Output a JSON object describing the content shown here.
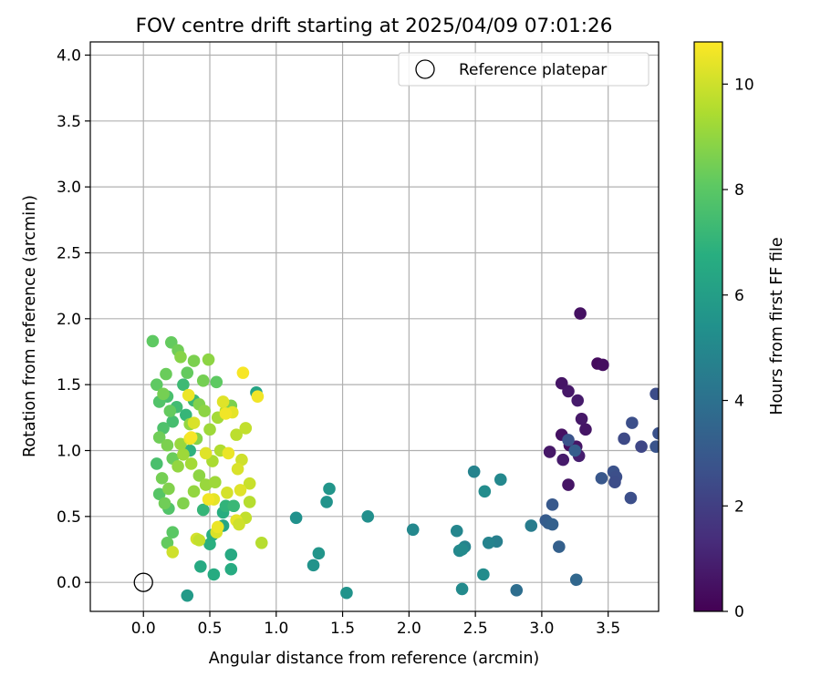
{
  "chart_data": {
    "type": "scatter",
    "title": "FOV centre drift starting at 2025/04/09 07:01:26",
    "xlabel": "Angular distance from reference (arcmin)",
    "ylabel": "Rotation from reference (arcmin)",
    "xlim": [
      -0.4,
      3.88
    ],
    "ylim": [
      -0.22,
      4.1
    ],
    "xticks": [
      0.0,
      0.5,
      1.0,
      1.5,
      2.0,
      2.5,
      3.0,
      3.5
    ],
    "yticks": [
      0.0,
      0.5,
      1.0,
      1.5,
      2.0,
      2.5,
      3.0,
      3.5,
      4.0
    ],
    "grid": true,
    "legend": {
      "position": "top-right",
      "entries": [
        "Reference platepar"
      ]
    },
    "reference_point": {
      "x": 0.0,
      "y": 0.0,
      "label": "Reference platepar"
    },
    "colorbar": {
      "label": "Hours from first FF file",
      "range": [
        0,
        10.8
      ],
      "ticks": [
        0,
        2,
        4,
        6,
        8,
        10
      ],
      "colormap": "viridis"
    },
    "points": [
      {
        "x": 3.29,
        "y": 2.04,
        "c": 0.5
      },
      {
        "x": 3.42,
        "y": 1.66,
        "c": 0.3
      },
      {
        "x": 3.46,
        "y": 1.65,
        "c": 0.4
      },
      {
        "x": 3.15,
        "y": 1.51,
        "c": 0.6
      },
      {
        "x": 3.2,
        "y": 1.45,
        "c": 0.7
      },
      {
        "x": 3.27,
        "y": 1.38,
        "c": 0.8
      },
      {
        "x": 3.3,
        "y": 1.24,
        "c": 0.7
      },
      {
        "x": 3.33,
        "y": 1.16,
        "c": 0.6
      },
      {
        "x": 3.15,
        "y": 1.12,
        "c": 0.5
      },
      {
        "x": 3.21,
        "y": 1.04,
        "c": 0.4
      },
      {
        "x": 3.26,
        "y": 1.03,
        "c": 0.6
      },
      {
        "x": 3.06,
        "y": 0.99,
        "c": 0.7
      },
      {
        "x": 3.28,
        "y": 0.96,
        "c": 0.9
      },
      {
        "x": 3.16,
        "y": 0.93,
        "c": 0.8
      },
      {
        "x": 3.2,
        "y": 0.74,
        "c": 0.6
      },
      {
        "x": 3.86,
        "y": 1.43,
        "c": 2.5
      },
      {
        "x": 3.68,
        "y": 1.21,
        "c": 2.6
      },
      {
        "x": 3.88,
        "y": 1.13,
        "c": 2.7
      },
      {
        "x": 3.62,
        "y": 1.09,
        "c": 2.4
      },
      {
        "x": 3.75,
        "y": 1.03,
        "c": 2.3
      },
      {
        "x": 3.86,
        "y": 1.03,
        "c": 2.8
      },
      {
        "x": 3.2,
        "y": 1.08,
        "c": 2.8
      },
      {
        "x": 3.25,
        "y": 1.0,
        "c": 3.2
      },
      {
        "x": 3.54,
        "y": 0.84,
        "c": 2.7
      },
      {
        "x": 3.45,
        "y": 0.79,
        "c": 2.9
      },
      {
        "x": 3.56,
        "y": 0.8,
        "c": 2.6
      },
      {
        "x": 3.55,
        "y": 0.76,
        "c": 2.5
      },
      {
        "x": 3.67,
        "y": 0.64,
        "c": 2.6
      },
      {
        "x": 3.08,
        "y": 0.59,
        "c": 3.0
      },
      {
        "x": 3.03,
        "y": 0.47,
        "c": 3.1
      },
      {
        "x": 3.05,
        "y": 0.45,
        "c": 3.2
      },
      {
        "x": 3.08,
        "y": 0.44,
        "c": 3.3
      },
      {
        "x": 3.13,
        "y": 0.27,
        "c": 3.3
      },
      {
        "x": 3.26,
        "y": 0.02,
        "c": 3.6
      },
      {
        "x": 2.81,
        "y": -0.06,
        "c": 3.9
      },
      {
        "x": 2.92,
        "y": 0.43,
        "c": 4.5
      },
      {
        "x": 2.66,
        "y": 0.31,
        "c": 4.6
      },
      {
        "x": 2.6,
        "y": 0.3,
        "c": 4.8
      },
      {
        "x": 2.69,
        "y": 0.78,
        "c": 5.0
      },
      {
        "x": 2.49,
        "y": 0.84,
        "c": 4.8
      },
      {
        "x": 2.57,
        "y": 0.69,
        "c": 5.2
      },
      {
        "x": 2.36,
        "y": 0.39,
        "c": 4.9
      },
      {
        "x": 2.42,
        "y": 0.27,
        "c": 4.8
      },
      {
        "x": 2.38,
        "y": 0.24,
        "c": 5.0
      },
      {
        "x": 2.4,
        "y": 0.25,
        "c": 5.1
      },
      {
        "x": 2.56,
        "y": 0.06,
        "c": 5.2
      },
      {
        "x": 2.4,
        "y": -0.05,
        "c": 5.1
      },
      {
        "x": 2.03,
        "y": 0.4,
        "c": 5.0
      },
      {
        "x": 1.69,
        "y": 0.5,
        "c": 5.3
      },
      {
        "x": 1.4,
        "y": 0.71,
        "c": 5.6
      },
      {
        "x": 1.38,
        "y": 0.61,
        "c": 5.5
      },
      {
        "x": 1.15,
        "y": 0.49,
        "c": 5.4
      },
      {
        "x": 1.32,
        "y": 0.22,
        "c": 5.6
      },
      {
        "x": 1.28,
        "y": 0.13,
        "c": 5.5
      },
      {
        "x": 1.53,
        "y": -0.08,
        "c": 5.5
      },
      {
        "x": 0.33,
        "y": -0.1,
        "c": 5.8
      },
      {
        "x": 0.85,
        "y": 1.44,
        "c": 6.3
      },
      {
        "x": 0.43,
        "y": 0.12,
        "c": 6.5
      },
      {
        "x": 0.53,
        "y": 0.06,
        "c": 6.6
      },
      {
        "x": 0.66,
        "y": 0.21,
        "c": 6.5
      },
      {
        "x": 0.66,
        "y": 0.1,
        "c": 6.6
      },
      {
        "x": 0.5,
        "y": 0.29,
        "c": 6.8
      },
      {
        "x": 0.52,
        "y": 0.36,
        "c": 6.7
      },
      {
        "x": 0.6,
        "y": 0.43,
        "c": 6.4
      },
      {
        "x": 0.6,
        "y": 0.53,
        "c": 6.7
      },
      {
        "x": 0.62,
        "y": 0.58,
        "c": 7.0
      },
      {
        "x": 0.68,
        "y": 0.58,
        "c": 7.2
      },
      {
        "x": 0.45,
        "y": 0.55,
        "c": 7.1
      },
      {
        "x": 0.35,
        "y": 1.0,
        "c": 6.9
      },
      {
        "x": 0.32,
        "y": 1.27,
        "c": 7.1
      },
      {
        "x": 0.38,
        "y": 1.38,
        "c": 7.2
      },
      {
        "x": 0.3,
        "y": 1.5,
        "c": 7.3
      },
      {
        "x": 0.25,
        "y": 1.33,
        "c": 7.4
      },
      {
        "x": 0.22,
        "y": 1.22,
        "c": 7.5
      },
      {
        "x": 0.18,
        "y": 1.41,
        "c": 7.6
      },
      {
        "x": 0.15,
        "y": 1.17,
        "c": 7.7
      },
      {
        "x": 0.12,
        "y": 1.37,
        "c": 7.8
      },
      {
        "x": 0.1,
        "y": 0.9,
        "c": 7.6
      },
      {
        "x": 0.12,
        "y": 0.67,
        "c": 7.9
      },
      {
        "x": 0.19,
        "y": 0.56,
        "c": 7.8
      },
      {
        "x": 0.22,
        "y": 0.38,
        "c": 8.0
      },
      {
        "x": 0.18,
        "y": 0.3,
        "c": 8.2
      },
      {
        "x": 0.07,
        "y": 1.83,
        "c": 8.1
      },
      {
        "x": 0.21,
        "y": 1.82,
        "c": 8.2
      },
      {
        "x": 0.26,
        "y": 1.76,
        "c": 8.4
      },
      {
        "x": 0.17,
        "y": 1.58,
        "c": 8.3
      },
      {
        "x": 0.1,
        "y": 1.5,
        "c": 8.1
      },
      {
        "x": 0.15,
        "y": 1.43,
        "c": 8.5
      },
      {
        "x": 0.2,
        "y": 1.3,
        "c": 8.2
      },
      {
        "x": 0.12,
        "y": 1.1,
        "c": 8.4
      },
      {
        "x": 0.18,
        "y": 1.04,
        "c": 8.6
      },
      {
        "x": 0.22,
        "y": 0.94,
        "c": 8.3
      },
      {
        "x": 0.14,
        "y": 0.79,
        "c": 8.5
      },
      {
        "x": 0.19,
        "y": 0.71,
        "c": 8.7
      },
      {
        "x": 0.16,
        "y": 0.6,
        "c": 8.4
      },
      {
        "x": 0.33,
        "y": 1.59,
        "c": 8.2
      },
      {
        "x": 0.28,
        "y": 1.71,
        "c": 8.8
      },
      {
        "x": 0.38,
        "y": 1.68,
        "c": 8.6
      },
      {
        "x": 0.45,
        "y": 1.53,
        "c": 8.5
      },
      {
        "x": 0.49,
        "y": 1.69,
        "c": 8.9
      },
      {
        "x": 0.55,
        "y": 1.52,
        "c": 8.1
      },
      {
        "x": 0.42,
        "y": 1.35,
        "c": 8.7
      },
      {
        "x": 0.46,
        "y": 1.3,
        "c": 8.9
      },
      {
        "x": 0.35,
        "y": 1.2,
        "c": 9.0
      },
      {
        "x": 0.4,
        "y": 1.09,
        "c": 8.8
      },
      {
        "x": 0.28,
        "y": 1.05,
        "c": 9.1
      },
      {
        "x": 0.3,
        "y": 0.97,
        "c": 9.2
      },
      {
        "x": 0.26,
        "y": 0.88,
        "c": 9.0
      },
      {
        "x": 0.36,
        "y": 0.9,
        "c": 9.3
      },
      {
        "x": 0.42,
        "y": 0.81,
        "c": 8.9
      },
      {
        "x": 0.47,
        "y": 0.74,
        "c": 9.1
      },
      {
        "x": 0.3,
        "y": 0.6,
        "c": 8.7
      },
      {
        "x": 0.38,
        "y": 0.69,
        "c": 9.0
      },
      {
        "x": 0.54,
        "y": 0.76,
        "c": 9.2
      },
      {
        "x": 0.52,
        "y": 0.92,
        "c": 9.4
      },
      {
        "x": 0.58,
        "y": 1.0,
        "c": 9.5
      },
      {
        "x": 0.5,
        "y": 1.16,
        "c": 9.2
      },
      {
        "x": 0.56,
        "y": 1.25,
        "c": 9.3
      },
      {
        "x": 0.62,
        "y": 1.3,
        "c": 9.6
      },
      {
        "x": 0.66,
        "y": 1.34,
        "c": 8.6
      },
      {
        "x": 0.7,
        "y": 1.12,
        "c": 9.7
      },
      {
        "x": 0.77,
        "y": 1.17,
        "c": 9.8
      },
      {
        "x": 0.74,
        "y": 0.93,
        "c": 10.0
      },
      {
        "x": 0.71,
        "y": 0.86,
        "c": 10.2
      },
      {
        "x": 0.8,
        "y": 0.75,
        "c": 9.9
      },
      {
        "x": 0.73,
        "y": 0.7,
        "c": 10.3
      },
      {
        "x": 0.63,
        "y": 0.68,
        "c": 10.1
      },
      {
        "x": 0.53,
        "y": 0.63,
        "c": 10.4
      },
      {
        "x": 0.49,
        "y": 0.63,
        "c": 10.6
      },
      {
        "x": 0.8,
        "y": 0.61,
        "c": 9.6
      },
      {
        "x": 0.77,
        "y": 0.49,
        "c": 9.8
      },
      {
        "x": 0.7,
        "y": 0.47,
        "c": 10.4
      },
      {
        "x": 0.72,
        "y": 0.44,
        "c": 10.0
      },
      {
        "x": 0.55,
        "y": 0.38,
        "c": 10.2
      },
      {
        "x": 0.56,
        "y": 0.42,
        "c": 10.5
      },
      {
        "x": 0.4,
        "y": 0.33,
        "c": 10.1
      },
      {
        "x": 0.42,
        "y": 0.32,
        "c": 9.8
      },
      {
        "x": 0.22,
        "y": 0.23,
        "c": 10.0
      },
      {
        "x": 0.89,
        "y": 0.3,
        "c": 9.6
      },
      {
        "x": 0.75,
        "y": 1.59,
        "c": 10.7
      },
      {
        "x": 0.86,
        "y": 1.41,
        "c": 10.6
      },
      {
        "x": 0.34,
        "y": 1.42,
        "c": 10.5
      },
      {
        "x": 0.6,
        "y": 1.37,
        "c": 10.3
      },
      {
        "x": 0.67,
        "y": 1.29,
        "c": 10.4
      },
      {
        "x": 0.62,
        "y": 1.28,
        "c": 10.6
      },
      {
        "x": 0.35,
        "y": 1.09,
        "c": 10.5
      },
      {
        "x": 0.38,
        "y": 1.21,
        "c": 10.2
      },
      {
        "x": 0.64,
        "y": 0.98,
        "c": 10.5
      },
      {
        "x": 0.47,
        "y": 0.98,
        "c": 10.3
      },
      {
        "x": 0.36,
        "y": 1.1,
        "c": 10.7
      }
    ]
  }
}
